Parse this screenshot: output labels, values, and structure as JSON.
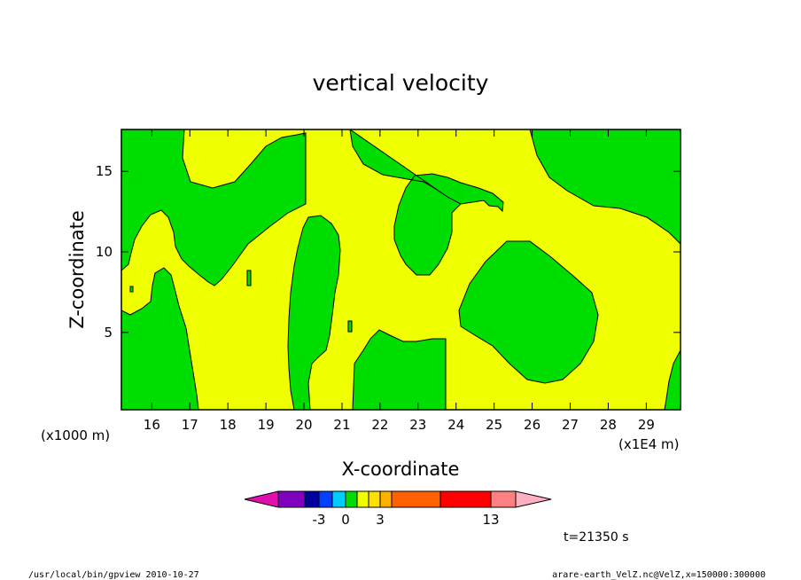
{
  "chart_data": {
    "type": "heatmap",
    "title": "vertical velocity",
    "xlabel": "X-coordinate",
    "ylabel": "Z-coordinate",
    "x_unit_left": "(x1000 m)",
    "x_unit_right": "(x1E4 m)",
    "xlim": [
      15.2,
      29.9
    ],
    "ylim": [
      0.2,
      17.6
    ],
    "x_ticks": [
      16,
      17,
      18,
      19,
      20,
      21,
      22,
      23,
      24,
      25,
      26,
      27,
      28,
      29
    ],
    "y_ticks": [
      5,
      10,
      15
    ],
    "fill_colors": {
      "positive_small": "#f0ff00",
      "negative_small": "#00dd00"
    },
    "colorbar": {
      "colors": [
        "#e010b0",
        "#8000c0",
        "#0000a0",
        "#0040ff",
        "#00ccff",
        "#00dd00",
        "#f0ff00",
        "#ffe000",
        "#ffb000",
        "#ff6000",
        "#ff0000",
        "#ff8080",
        "#ffb0c0"
      ],
      "labels": [
        {
          "text": "-3",
          "at_boundary": 3
        },
        {
          "text": "0",
          "at_boundary": 5
        },
        {
          "text": "3",
          "at_boundary": 8
        },
        {
          "text": "13",
          "at_boundary": 11
        }
      ]
    },
    "time_label": "t=21350 s"
  },
  "footer": {
    "left": "/usr/local/bin/gpview  2010-10-27",
    "right": "arare-earth_VelZ.nc@VelZ,x=150000:300000"
  }
}
